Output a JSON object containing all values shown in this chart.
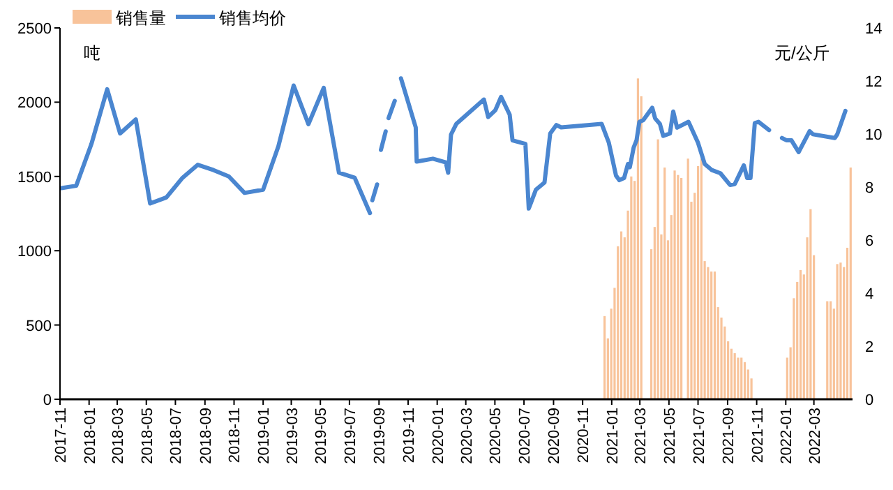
{
  "chart_data": {
    "type": "bar",
    "ylabel": "吨",
    "y2label": "元/公斤",
    "legend": "top left",
    "xlim": [
      "2017-11-01",
      "2022-05-21"
    ],
    "xticks": [
      "2017-11",
      "2018-01",
      "2018-03",
      "2018-05",
      "2018-07",
      "2018-09",
      "2018-11",
      "2019-01",
      "2019-03",
      "2019-05",
      "2019-07",
      "2019-09",
      "2019-11",
      "2020-01",
      "2020-03",
      "2020-05",
      "2020-07",
      "2020-09",
      "2020-11",
      "2021-01",
      "2021-03",
      "2021-05",
      "2021-07",
      "2021-09",
      "2021-11",
      "2022-01",
      "2022-03"
    ],
    "ylim": [
      0,
      2500
    ],
    "yticks": [
      0,
      500,
      1000,
      1500,
      2000,
      2500
    ],
    "y2lim": [
      0,
      14
    ],
    "y2ticks": [
      0,
      2,
      4,
      6,
      8,
      10,
      12,
      14
    ],
    "series": [
      {
        "name": "销售量",
        "color": "#f8c39a",
        "x": [
          "2020-12-17",
          "2020-12-24",
          "2020-12-31",
          "2021-01-07",
          "2021-01-14",
          "2021-01-21",
          "2021-01-28",
          "2021-02-04",
          "2021-02-11",
          "2021-02-18",
          "2021-02-25",
          "2021-03-04",
          "2021-03-25",
          "2021-04-01",
          "2021-04-08",
          "2021-04-15",
          "2021-04-22",
          "2021-04-29",
          "2021-05-06",
          "2021-05-13",
          "2021-05-20",
          "2021-05-27",
          "2021-06-10",
          "2021-06-17",
          "2021-06-24",
          "2021-07-01",
          "2021-07-08",
          "2021-07-15",
          "2021-07-22",
          "2021-07-29",
          "2021-08-05",
          "2021-08-12",
          "2021-08-19",
          "2021-08-26",
          "2021-09-02",
          "2021-09-09",
          "2021-09-16",
          "2021-09-23",
          "2021-09-30",
          "2021-10-07",
          "2021-10-14",
          "2021-10-21",
          "2022-01-04",
          "2022-01-11",
          "2022-01-18",
          "2022-01-25",
          "2022-02-01",
          "2022-02-08",
          "2022-02-15",
          "2022-02-22",
          "2022-03-01",
          "2022-03-29",
          "2022-04-05",
          "2022-04-12",
          "2022-04-19",
          "2022-04-26",
          "2022-05-03",
          "2022-05-10",
          "2022-05-17"
        ],
        "values": [
          560,
          410,
          610,
          750,
          1030,
          1130,
          1090,
          1270,
          1500,
          1470,
          2160,
          2040,
          1010,
          1160,
          1750,
          1110,
          1560,
          1070,
          1240,
          1540,
          1510,
          1490,
          1620,
          1330,
          1390,
          1570,
          1620,
          930,
          890,
          860,
          860,
          620,
          550,
          490,
          390,
          340,
          310,
          280,
          280,
          250,
          200,
          140,
          280,
          350,
          680,
          790,
          870,
          840,
          1090,
          1280,
          970,
          660,
          660,
          610,
          910,
          920,
          890,
          1020,
          1560
        ]
      },
      {
        "name": "销售均价",
        "type": "line",
        "axis": "y2",
        "color": "#4a86d0",
        "line_style": "solid",
        "marker": "none",
        "x": [
          "2017-11-04",
          "2017-12-05",
          "2018-01-06",
          "2018-02-08",
          "2018-03-07",
          "2018-04-09",
          "2018-05-09",
          "2018-06-12",
          "2018-07-16",
          "2018-08-17",
          "2018-09-19",
          "2018-10-21",
          "2018-11-23",
          "2019-01-01",
          "2019-02-02",
          "2019-03-06",
          "2019-04-06",
          "2019-05-08",
          "2019-06-09",
          "2019-07-12",
          "2019-08-13",
          "2019-08-15",
          "2019-08-18",
          "2019-08-28",
          "2019-09-01",
          "2019-09-05",
          "2019-09-15",
          "2019-09-18",
          "2019-09-21",
          "2019-10-04",
          "2019-10-10",
          "2019-10-17",
          "2019-11-17",
          "2019-11-19",
          "2019-12-23",
          "2020-01-19",
          "2020-01-24",
          "2020-01-30",
          "2020-02-10",
          "2020-04-08",
          "2020-04-17",
          "2020-05-02",
          "2020-05-14",
          "2020-06-01",
          "2020-06-07",
          "2020-07-04",
          "2020-07-11",
          "2020-07-26",
          "2020-08-13",
          "2020-08-25",
          "2020-09-07",
          "2020-09-17",
          "2020-12-11",
          "2020-12-26",
          "2021-01-10",
          "2021-01-17",
          "2021-01-27",
          "2021-02-04",
          "2021-02-08",
          "2021-02-16",
          "2021-02-22",
          "2021-02-28",
          "2021-03-08",
          "2021-03-27",
          "2021-04-02",
          "2021-04-12",
          "2021-04-19",
          "2021-05-03",
          "2021-05-10",
          "2021-05-18",
          "2021-06-11",
          "2021-07-01",
          "2021-07-15",
          "2021-07-30",
          "2021-08-17",
          "2021-09-06",
          "2021-09-16",
          "2021-10-05",
          "2021-10-12",
          "2021-10-19",
          "2021-10-28",
          "2021-11-05",
          "2021-11-27",
          "2021-12-10",
          "2021-12-24",
          "2022-01-03",
          "2022-01-13",
          "2022-01-28",
          "2022-02-20",
          "2022-02-27",
          "2022-04-14",
          "2022-04-19",
          "2022-05-06"
        ],
        "values": [
          7.96,
          8.05,
          9.63,
          11.69,
          10.02,
          10.55,
          7.38,
          7.61,
          8.35,
          8.84,
          8.64,
          8.4,
          7.78,
          7.9,
          9.54,
          11.83,
          10.37,
          11.74,
          8.54,
          8.35,
          7.02,
          null,
          7.5,
          8.1,
          null,
          9.4,
          10.1,
          null,
          10.6,
          11.25,
          null,
          12.1,
          10.25,
          8.96,
          9.07,
          8.93,
          8.54,
          9.98,
          10.38,
          11.3,
          10.64,
          10.9,
          11.4,
          10.73,
          9.76,
          9.63,
          7.19,
          7.9,
          8.17,
          10.02,
          10.34,
          10.25,
          10.38,
          9.67,
          8.43,
          8.26,
          8.34,
          8.87,
          8.75,
          9.49,
          9.76,
          10.46,
          10.52,
          10.99,
          10.59,
          10.38,
          9.93,
          10.02,
          10.85,
          10.24,
          10.46,
          9.67,
          8.87,
          8.64,
          8.52,
          8.08,
          8.11,
          8.82,
          8.34,
          8.34,
          10.41,
          10.46,
          10.15,
          null,
          9.85,
          9.76,
          9.76,
          9.32,
          10.11,
          9.99,
          9.85,
          9.99,
          10.87
        ]
      }
    ]
  }
}
